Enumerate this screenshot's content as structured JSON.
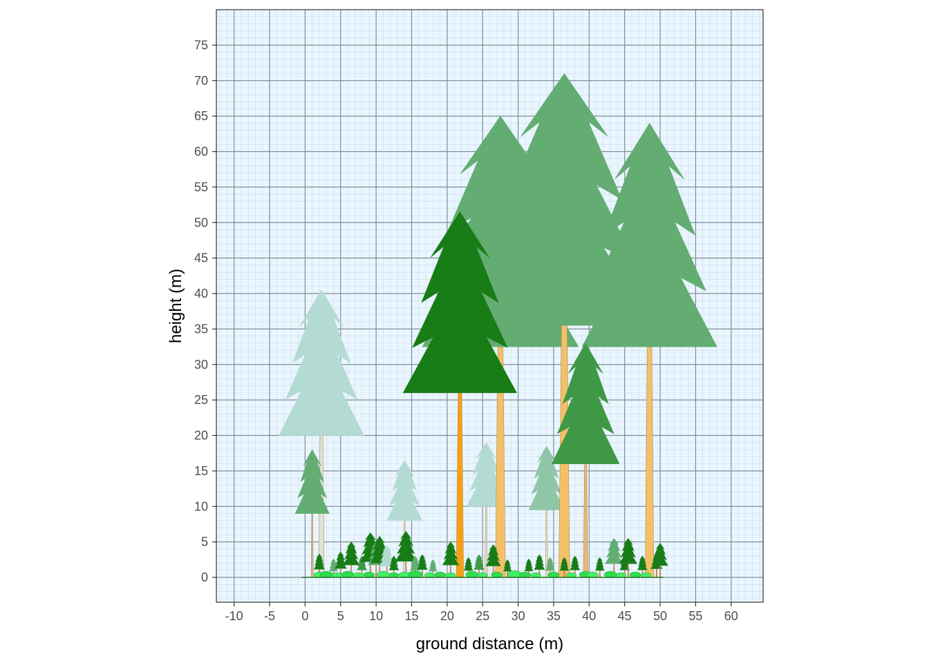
{
  "chart_data": {
    "type": "scatter",
    "title": "",
    "xlabel": "ground distance (m)",
    "ylabel": "height (m)",
    "xlim": [
      -12.5,
      64.5
    ],
    "ylim": [
      -3.5,
      80
    ],
    "x_ticks": [
      -10,
      -5,
      0,
      5,
      10,
      15,
      20,
      25,
      30,
      35,
      40,
      45,
      50,
      55,
      60
    ],
    "y_ticks": [
      0,
      5,
      10,
      15,
      20,
      25,
      30,
      35,
      40,
      45,
      50,
      55,
      60,
      65,
      70,
      75
    ],
    "grid": "major and minor",
    "legend": "none",
    "background": "#eaf6ff",
    "major_grid_color": "#7f8c97",
    "minor_grid_color": "#c9dbe8",
    "trees": [
      {
        "x": 2.3,
        "height": 40.5,
        "crown_base": 20.0,
        "crown_width": 12.0,
        "color": "#b4dbd3",
        "trunk_color": "#dde2d8"
      },
      {
        "x": 1.0,
        "height": 18.0,
        "crown_base": 9.0,
        "crown_width": 4.8,
        "color": "#63ad73",
        "trunk_color": "#c7b5a0"
      },
      {
        "x": 14.0,
        "height": 16.5,
        "crown_base": 8.0,
        "crown_width": 5.0,
        "color": "#b4dbd3",
        "trunk_color": "#dde2d8"
      },
      {
        "x": 25.5,
        "height": 19.0,
        "crown_base": 10.0,
        "crown_width": 5.5,
        "color": "#b4dbd3",
        "trunk_color": "#dde2d8"
      },
      {
        "x": 34.0,
        "height": 18.5,
        "crown_base": 9.5,
        "crown_width": 5.0,
        "color": "#90c6a8",
        "trunk_color": "#dde2d8"
      },
      {
        "x": 27.5,
        "height": 65.0,
        "crown_base": 32.5,
        "crown_width": 22.0,
        "color": "#63ad73",
        "trunk_color": "#f2c069"
      },
      {
        "x": 36.5,
        "height": 71.0,
        "crown_base": 35.5,
        "crown_width": 24.0,
        "color": "#63ad73",
        "trunk_color": "#f2c069"
      },
      {
        "x": 48.5,
        "height": 64.0,
        "crown_base": 32.5,
        "crown_width": 19.0,
        "color": "#63ad73",
        "trunk_color": "#f2c069"
      },
      {
        "x": 21.8,
        "height": 51.5,
        "crown_base": 26.0,
        "crown_width": 16.0,
        "color": "#187c17",
        "trunk_color": "#f5a014"
      },
      {
        "x": 39.5,
        "height": 33.0,
        "crown_base": 16.0,
        "crown_width": 9.5,
        "color": "#3f9846",
        "trunk_color": "#e8b771"
      }
    ],
    "understory": [
      {
        "x": 2.0,
        "height": 3.3,
        "color": "#187c17"
      },
      {
        "x": 4.0,
        "height": 2.6,
        "color": "#63ad73"
      },
      {
        "x": 5.0,
        "height": 3.6,
        "color": "#187c17"
      },
      {
        "x": 6.5,
        "height": 5.0,
        "color": "#187c17"
      },
      {
        "x": 8.0,
        "height": 3.0,
        "color": "#3f9846"
      },
      {
        "x": 9.2,
        "height": 6.3,
        "color": "#187c17"
      },
      {
        "x": 10.0,
        "height": 5.0,
        "color": "#63ad73"
      },
      {
        "x": 10.5,
        "height": 5.8,
        "color": "#187c17"
      },
      {
        "x": 11.5,
        "height": 4.5,
        "color": "#b4dbd3"
      },
      {
        "x": 12.5,
        "height": 3.0,
        "color": "#187c17"
      },
      {
        "x": 14.2,
        "height": 6.5,
        "color": "#187c17"
      },
      {
        "x": 15.5,
        "height": 3.0,
        "color": "#63ad73"
      },
      {
        "x": 16.5,
        "height": 3.2,
        "color": "#187c17"
      },
      {
        "x": 18.0,
        "height": 2.5,
        "color": "#63ad73"
      },
      {
        "x": 20.5,
        "height": 5.0,
        "color": "#187c17"
      },
      {
        "x": 23.0,
        "height": 2.8,
        "color": "#187c17"
      },
      {
        "x": 24.5,
        "height": 3.2,
        "color": "#3f9846"
      },
      {
        "x": 26.5,
        "height": 4.6,
        "color": "#187c17"
      },
      {
        "x": 28.5,
        "height": 2.5,
        "color": "#187c17"
      },
      {
        "x": 31.5,
        "height": 2.6,
        "color": "#187c17"
      },
      {
        "x": 33.0,
        "height": 3.2,
        "color": "#187c17"
      },
      {
        "x": 34.5,
        "height": 2.8,
        "color": "#63ad73"
      },
      {
        "x": 36.5,
        "height": 2.8,
        "color": "#187c17"
      },
      {
        "x": 38.0,
        "height": 3.0,
        "color": "#187c17"
      },
      {
        "x": 41.5,
        "height": 2.8,
        "color": "#187c17"
      },
      {
        "x": 43.5,
        "height": 5.5,
        "color": "#63ad73"
      },
      {
        "x": 45.0,
        "height": 3.0,
        "color": "#187c17"
      },
      {
        "x": 45.5,
        "height": 5.5,
        "color": "#187c17"
      },
      {
        "x": 47.5,
        "height": 3.0,
        "color": "#187c17"
      },
      {
        "x": 49.5,
        "height": 3.5,
        "color": "#187c17"
      },
      {
        "x": 50.0,
        "height": 4.8,
        "color": "#187c17"
      }
    ],
    "shrubs": [
      {
        "x": 2.0,
        "height": 0.8,
        "color": "#44ee66"
      },
      {
        "x": 3.0,
        "height": 0.9,
        "color": "#2fdc4c"
      },
      {
        "x": 4.5,
        "height": 0.7,
        "color": "#44ee66"
      },
      {
        "x": 6.0,
        "height": 0.9,
        "color": "#2fdc4c"
      },
      {
        "x": 7.5,
        "height": 0.7,
        "color": "#44ee66"
      },
      {
        "x": 9.0,
        "height": 0.8,
        "color": "#2fdc4c"
      },
      {
        "x": 11.0,
        "height": 0.9,
        "color": "#44ee66"
      },
      {
        "x": 12.5,
        "height": 0.7,
        "color": "#2fdc4c"
      },
      {
        "x": 14.0,
        "height": 0.8,
        "color": "#44ee66"
      },
      {
        "x": 15.5,
        "height": 1.0,
        "color": "#2fdc4c"
      },
      {
        "x": 17.5,
        "height": 0.7,
        "color": "#44ee66"
      },
      {
        "x": 19.0,
        "height": 0.8,
        "color": "#2fdc4c"
      },
      {
        "x": 20.5,
        "height": 0.7,
        "color": "#44ee66"
      },
      {
        "x": 23.5,
        "height": 0.9,
        "color": "#2fdc4c"
      },
      {
        "x": 25.0,
        "height": 0.7,
        "color": "#44ee66"
      },
      {
        "x": 27.0,
        "height": 0.8,
        "color": "#2fdc4c"
      },
      {
        "x": 29.5,
        "height": 1.0,
        "color": "#44ee66"
      },
      {
        "x": 31.0,
        "height": 0.8,
        "color": "#2fdc4c"
      },
      {
        "x": 32.5,
        "height": 0.7,
        "color": "#44ee66"
      },
      {
        "x": 35.0,
        "height": 0.8,
        "color": "#2fdc4c"
      },
      {
        "x": 37.5,
        "height": 0.7,
        "color": "#44ee66"
      },
      {
        "x": 39.5,
        "height": 0.9,
        "color": "#2fdc4c"
      },
      {
        "x": 40.5,
        "height": 0.8,
        "color": "#44ee66"
      },
      {
        "x": 43.0,
        "height": 0.9,
        "color": "#2fdc4c"
      },
      {
        "x": 44.5,
        "height": 0.7,
        "color": "#44ee66"
      },
      {
        "x": 46.5,
        "height": 0.8,
        "color": "#2fdc4c"
      },
      {
        "x": 48.0,
        "height": 0.7,
        "color": "#44ee66"
      }
    ]
  }
}
